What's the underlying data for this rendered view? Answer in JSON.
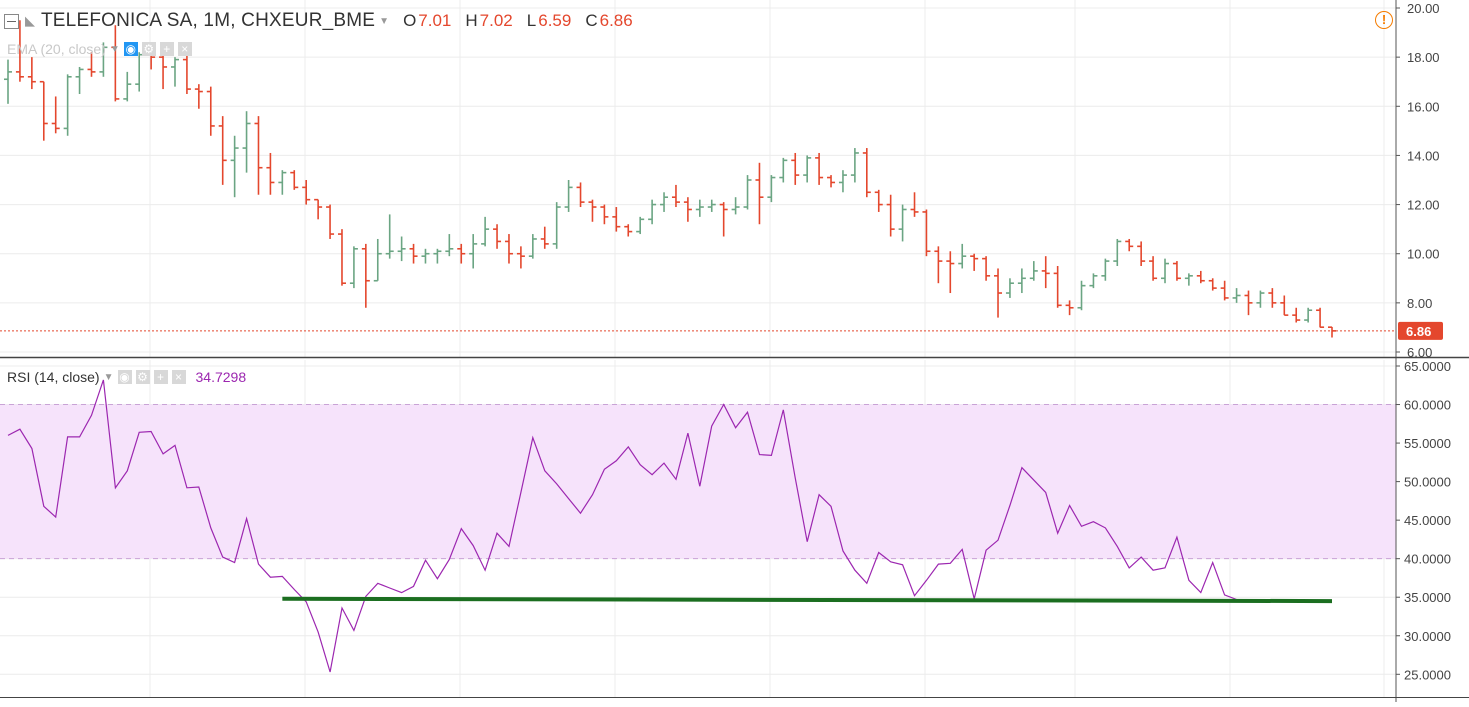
{
  "symbol": {
    "title": "TELEFONICA SA, 1M, CHXEUR_BME",
    "ohlc": [
      {
        "label": "O",
        "value": "7.01"
      },
      {
        "label": "H",
        "value": "7.02"
      },
      {
        "label": "L",
        "value": "6.59"
      },
      {
        "label": "C",
        "value": "6.86"
      }
    ]
  },
  "indicators": {
    "ema_label": "EMA (20, close)",
    "rsi_label": "RSI (14, close)",
    "rsi_value": "34.7298"
  },
  "colors": {
    "up": "#6ba583",
    "down": "#e4472d",
    "rsi_line": "#9c27b0",
    "rsi_band": "#f6e3fb",
    "trendline": "#1b6e20",
    "price_line": "#e4472d",
    "grid": "#ececec"
  },
  "chart_data": [
    {
      "type": "ohlc",
      "title": "TELEFONICA SA, 1M, CHXEUR_BME",
      "ylim": [
        6,
        20
      ],
      "y_ticks": [
        "6.00",
        "8.00",
        "10.00",
        "12.00",
        "14.00",
        "16.00",
        "18.00",
        "20.00"
      ],
      "last_price_label": "6.86",
      "last_price": 6.86,
      "bars": [
        [
          17.1,
          17.9,
          16.1,
          17.4
        ],
        [
          17.4,
          19.5,
          17.0,
          17.2
        ],
        [
          17.2,
          18.0,
          16.7,
          17.0
        ],
        [
          17.0,
          17.0,
          14.6,
          15.3
        ],
        [
          15.3,
          16.4,
          14.9,
          15.1
        ],
        [
          15.1,
          17.3,
          14.8,
          17.2
        ],
        [
          17.2,
          17.6,
          16.5,
          17.5
        ],
        [
          17.5,
          18.2,
          17.2,
          17.4
        ],
        [
          17.4,
          18.6,
          17.2,
          18.4
        ],
        [
          18.4,
          19.3,
          16.2,
          16.3
        ],
        [
          16.3,
          17.4,
          16.2,
          16.9
        ],
        [
          16.9,
          18.2,
          16.6,
          18.1
        ],
        [
          18.1,
          18.3,
          17.5,
          18.0
        ],
        [
          18.0,
          18.5,
          16.7,
          17.6
        ],
        [
          17.6,
          18.0,
          16.8,
          17.9
        ],
        [
          17.9,
          18.1,
          16.5,
          16.7
        ],
        [
          16.7,
          16.9,
          15.9,
          16.6
        ],
        [
          16.6,
          16.8,
          14.8,
          15.2
        ],
        [
          15.2,
          15.6,
          12.8,
          13.8
        ],
        [
          13.8,
          14.8,
          12.3,
          14.3
        ],
        [
          14.3,
          15.8,
          13.3,
          15.3
        ],
        [
          15.3,
          15.6,
          12.4,
          13.5
        ],
        [
          13.5,
          14.1,
          12.4,
          12.9
        ],
        [
          12.9,
          13.4,
          12.4,
          13.3
        ],
        [
          13.3,
          13.4,
          12.6,
          12.7
        ],
        [
          12.7,
          13.0,
          12.0,
          12.2
        ],
        [
          12.2,
          12.2,
          11.4,
          11.9
        ],
        [
          11.9,
          12.0,
          10.6,
          10.8
        ],
        [
          10.8,
          11.0,
          8.7,
          8.8
        ],
        [
          8.8,
          10.3,
          8.6,
          10.2
        ],
        [
          10.2,
          10.4,
          7.8,
          8.9
        ],
        [
          8.9,
          10.6,
          8.9,
          10.0
        ],
        [
          10.0,
          11.6,
          9.8,
          10.1
        ],
        [
          10.1,
          10.7,
          9.7,
          10.2
        ],
        [
          10.2,
          10.4,
          9.6,
          9.9
        ],
        [
          9.9,
          10.2,
          9.6,
          10.0
        ],
        [
          10.0,
          10.2,
          9.6,
          10.1
        ],
        [
          10.1,
          10.8,
          9.9,
          10.2
        ],
        [
          10.2,
          10.4,
          9.6,
          10.0
        ],
        [
          10.0,
          10.8,
          9.4,
          10.4
        ],
        [
          10.4,
          11.5,
          10.3,
          11.0
        ],
        [
          11.0,
          11.2,
          10.2,
          10.5
        ],
        [
          10.5,
          10.8,
          9.6,
          10.0
        ],
        [
          10.0,
          10.3,
          9.4,
          9.9
        ],
        [
          9.9,
          10.8,
          9.8,
          10.6
        ],
        [
          10.6,
          11.1,
          10.2,
          10.4
        ],
        [
          10.4,
          12.1,
          10.2,
          11.9
        ],
        [
          11.9,
          13.0,
          11.7,
          12.7
        ],
        [
          12.7,
          12.9,
          11.9,
          12.1
        ],
        [
          12.1,
          12.2,
          11.3,
          11.9
        ],
        [
          11.9,
          12.0,
          11.2,
          11.5
        ],
        [
          11.5,
          11.9,
          10.9,
          11.1
        ],
        [
          11.1,
          11.2,
          10.7,
          10.9
        ],
        [
          10.9,
          11.5,
          10.8,
          11.4
        ],
        [
          11.4,
          12.2,
          11.2,
          12.0
        ],
        [
          12.0,
          12.5,
          11.7,
          12.3
        ],
        [
          12.3,
          12.8,
          11.9,
          12.1
        ],
        [
          12.1,
          12.3,
          11.3,
          11.8
        ],
        [
          11.8,
          12.2,
          11.5,
          11.9
        ],
        [
          11.9,
          12.2,
          11.7,
          12.0
        ],
        [
          12.0,
          12.1,
          10.7,
          11.8
        ],
        [
          11.8,
          12.3,
          11.6,
          11.9
        ],
        [
          11.9,
          13.2,
          11.8,
          13.0
        ],
        [
          13.0,
          13.7,
          11.2,
          12.3
        ],
        [
          12.3,
          13.2,
          12.1,
          13.1
        ],
        [
          13.1,
          13.9,
          12.9,
          13.8
        ],
        [
          13.8,
          14.1,
          12.8,
          13.2
        ],
        [
          13.2,
          14.0,
          12.9,
          13.9
        ],
        [
          13.9,
          14.1,
          12.8,
          13.1
        ],
        [
          13.1,
          13.2,
          12.7,
          12.9
        ],
        [
          12.9,
          13.4,
          12.5,
          13.2
        ],
        [
          13.2,
          14.3,
          12.9,
          14.1
        ],
        [
          14.1,
          14.3,
          12.3,
          12.5
        ],
        [
          12.5,
          12.6,
          11.7,
          12.0
        ],
        [
          12.0,
          12.4,
          10.7,
          11.0
        ],
        [
          11.0,
          12.0,
          10.5,
          11.8
        ],
        [
          11.8,
          12.5,
          11.5,
          11.7
        ],
        [
          11.7,
          11.8,
          9.9,
          10.1
        ],
        [
          10.1,
          10.3,
          8.8,
          9.7
        ],
        [
          9.7,
          10.1,
          8.4,
          9.6
        ],
        [
          9.6,
          10.4,
          9.4,
          9.9
        ],
        [
          9.9,
          10.0,
          9.3,
          9.8
        ],
        [
          9.8,
          9.9,
          8.9,
          9.1
        ],
        [
          9.1,
          9.4,
          7.4,
          8.4
        ],
        [
          8.4,
          9.0,
          8.2,
          8.8
        ],
        [
          8.8,
          9.4,
          8.4,
          9.0
        ],
        [
          9.0,
          9.7,
          8.9,
          9.3
        ],
        [
          9.3,
          9.9,
          8.6,
          9.2
        ],
        [
          9.2,
          9.5,
          7.8,
          7.9
        ],
        [
          7.9,
          8.1,
          7.5,
          7.8
        ],
        [
          7.8,
          8.9,
          7.7,
          8.7
        ],
        [
          8.7,
          9.2,
          8.6,
          9.1
        ],
        [
          9.1,
          9.8,
          8.9,
          9.7
        ],
        [
          9.7,
          10.6,
          9.5,
          10.5
        ],
        [
          10.5,
          10.6,
          10.1,
          10.3
        ],
        [
          10.3,
          10.5,
          9.5,
          9.7
        ],
        [
          9.7,
          9.9,
          8.9,
          9.0
        ],
        [
          9.0,
          9.8,
          8.8,
          9.6
        ],
        [
          9.6,
          9.7,
          8.9,
          9.0
        ],
        [
          9.0,
          9.2,
          8.7,
          9.1
        ],
        [
          9.1,
          9.3,
          8.8,
          8.9
        ],
        [
          8.9,
          9.0,
          8.5,
          8.6
        ],
        [
          8.6,
          8.9,
          8.1,
          8.2
        ],
        [
          8.2,
          8.6,
          8.0,
          8.3
        ],
        [
          8.3,
          8.5,
          7.5,
          8.0
        ],
        [
          8.0,
          8.5,
          7.8,
          8.4
        ],
        [
          8.4,
          8.6,
          7.8,
          8.0
        ],
        [
          8.0,
          8.3,
          7.5,
          7.5
        ],
        [
          7.5,
          7.8,
          7.2,
          7.3
        ],
        [
          7.3,
          7.8,
          7.2,
          7.7
        ],
        [
          7.7,
          7.8,
          7.0,
          7.01
        ],
        [
          7.01,
          7.02,
          6.59,
          6.86
        ]
      ]
    },
    {
      "type": "line",
      "title": "RSI (14, close)",
      "ylim": [
        24,
        65
      ],
      "y_ticks": [
        "25.0000",
        "30.0000",
        "35.0000",
        "40.0000",
        "45.0000",
        "50.0000",
        "55.0000",
        "60.0000",
        "65.0000"
      ],
      "band": [
        40,
        60
      ],
      "values": [
        56.0,
        56.8,
        54.3,
        46.8,
        45.4,
        55.8,
        55.8,
        58.6,
        63.2,
        49.2,
        51.4,
        56.4,
        56.5,
        53.6,
        54.7,
        49.2,
        49.3,
        44.0,
        40.2,
        39.5,
        45.2,
        39.3,
        37.6,
        37.7,
        36.0,
        34.4,
        30.5,
        25.3,
        33.6,
        30.7,
        35.1,
        36.8,
        36.2,
        35.6,
        36.4,
        39.8,
        37.4,
        39.9,
        43.9,
        41.7,
        38.5,
        43.3,
        41.6,
        48.6,
        55.7,
        51.4,
        49.7,
        47.8,
        45.9,
        48.3,
        51.6,
        52.7,
        54.5,
        52.2,
        50.9,
        52.4,
        50.3,
        56.3,
        49.4,
        57.2,
        60.0,
        57.0,
        59.0,
        53.5,
        53.4,
        59.3,
        50.5,
        42.2,
        48.3,
        46.8,
        41.0,
        38.5,
        36.8,
        40.8,
        39.6,
        39.2,
        35.2,
        37.2,
        39.3,
        39.4,
        41.2,
        34.8,
        41.1,
        42.4,
        46.9,
        51.8,
        50.2,
        48.6,
        43.3,
        46.9,
        44.2,
        44.8,
        44.0,
        41.6,
        38.8,
        40.2,
        38.5,
        38.8,
        42.8,
        37.2,
        35.6,
        39.5,
        35.3,
        34.7
      ],
      "trendline": {
        "x_start_index": 23,
        "x_end_index": 111,
        "y_start": 34.8,
        "y_end": 34.5
      }
    }
  ]
}
